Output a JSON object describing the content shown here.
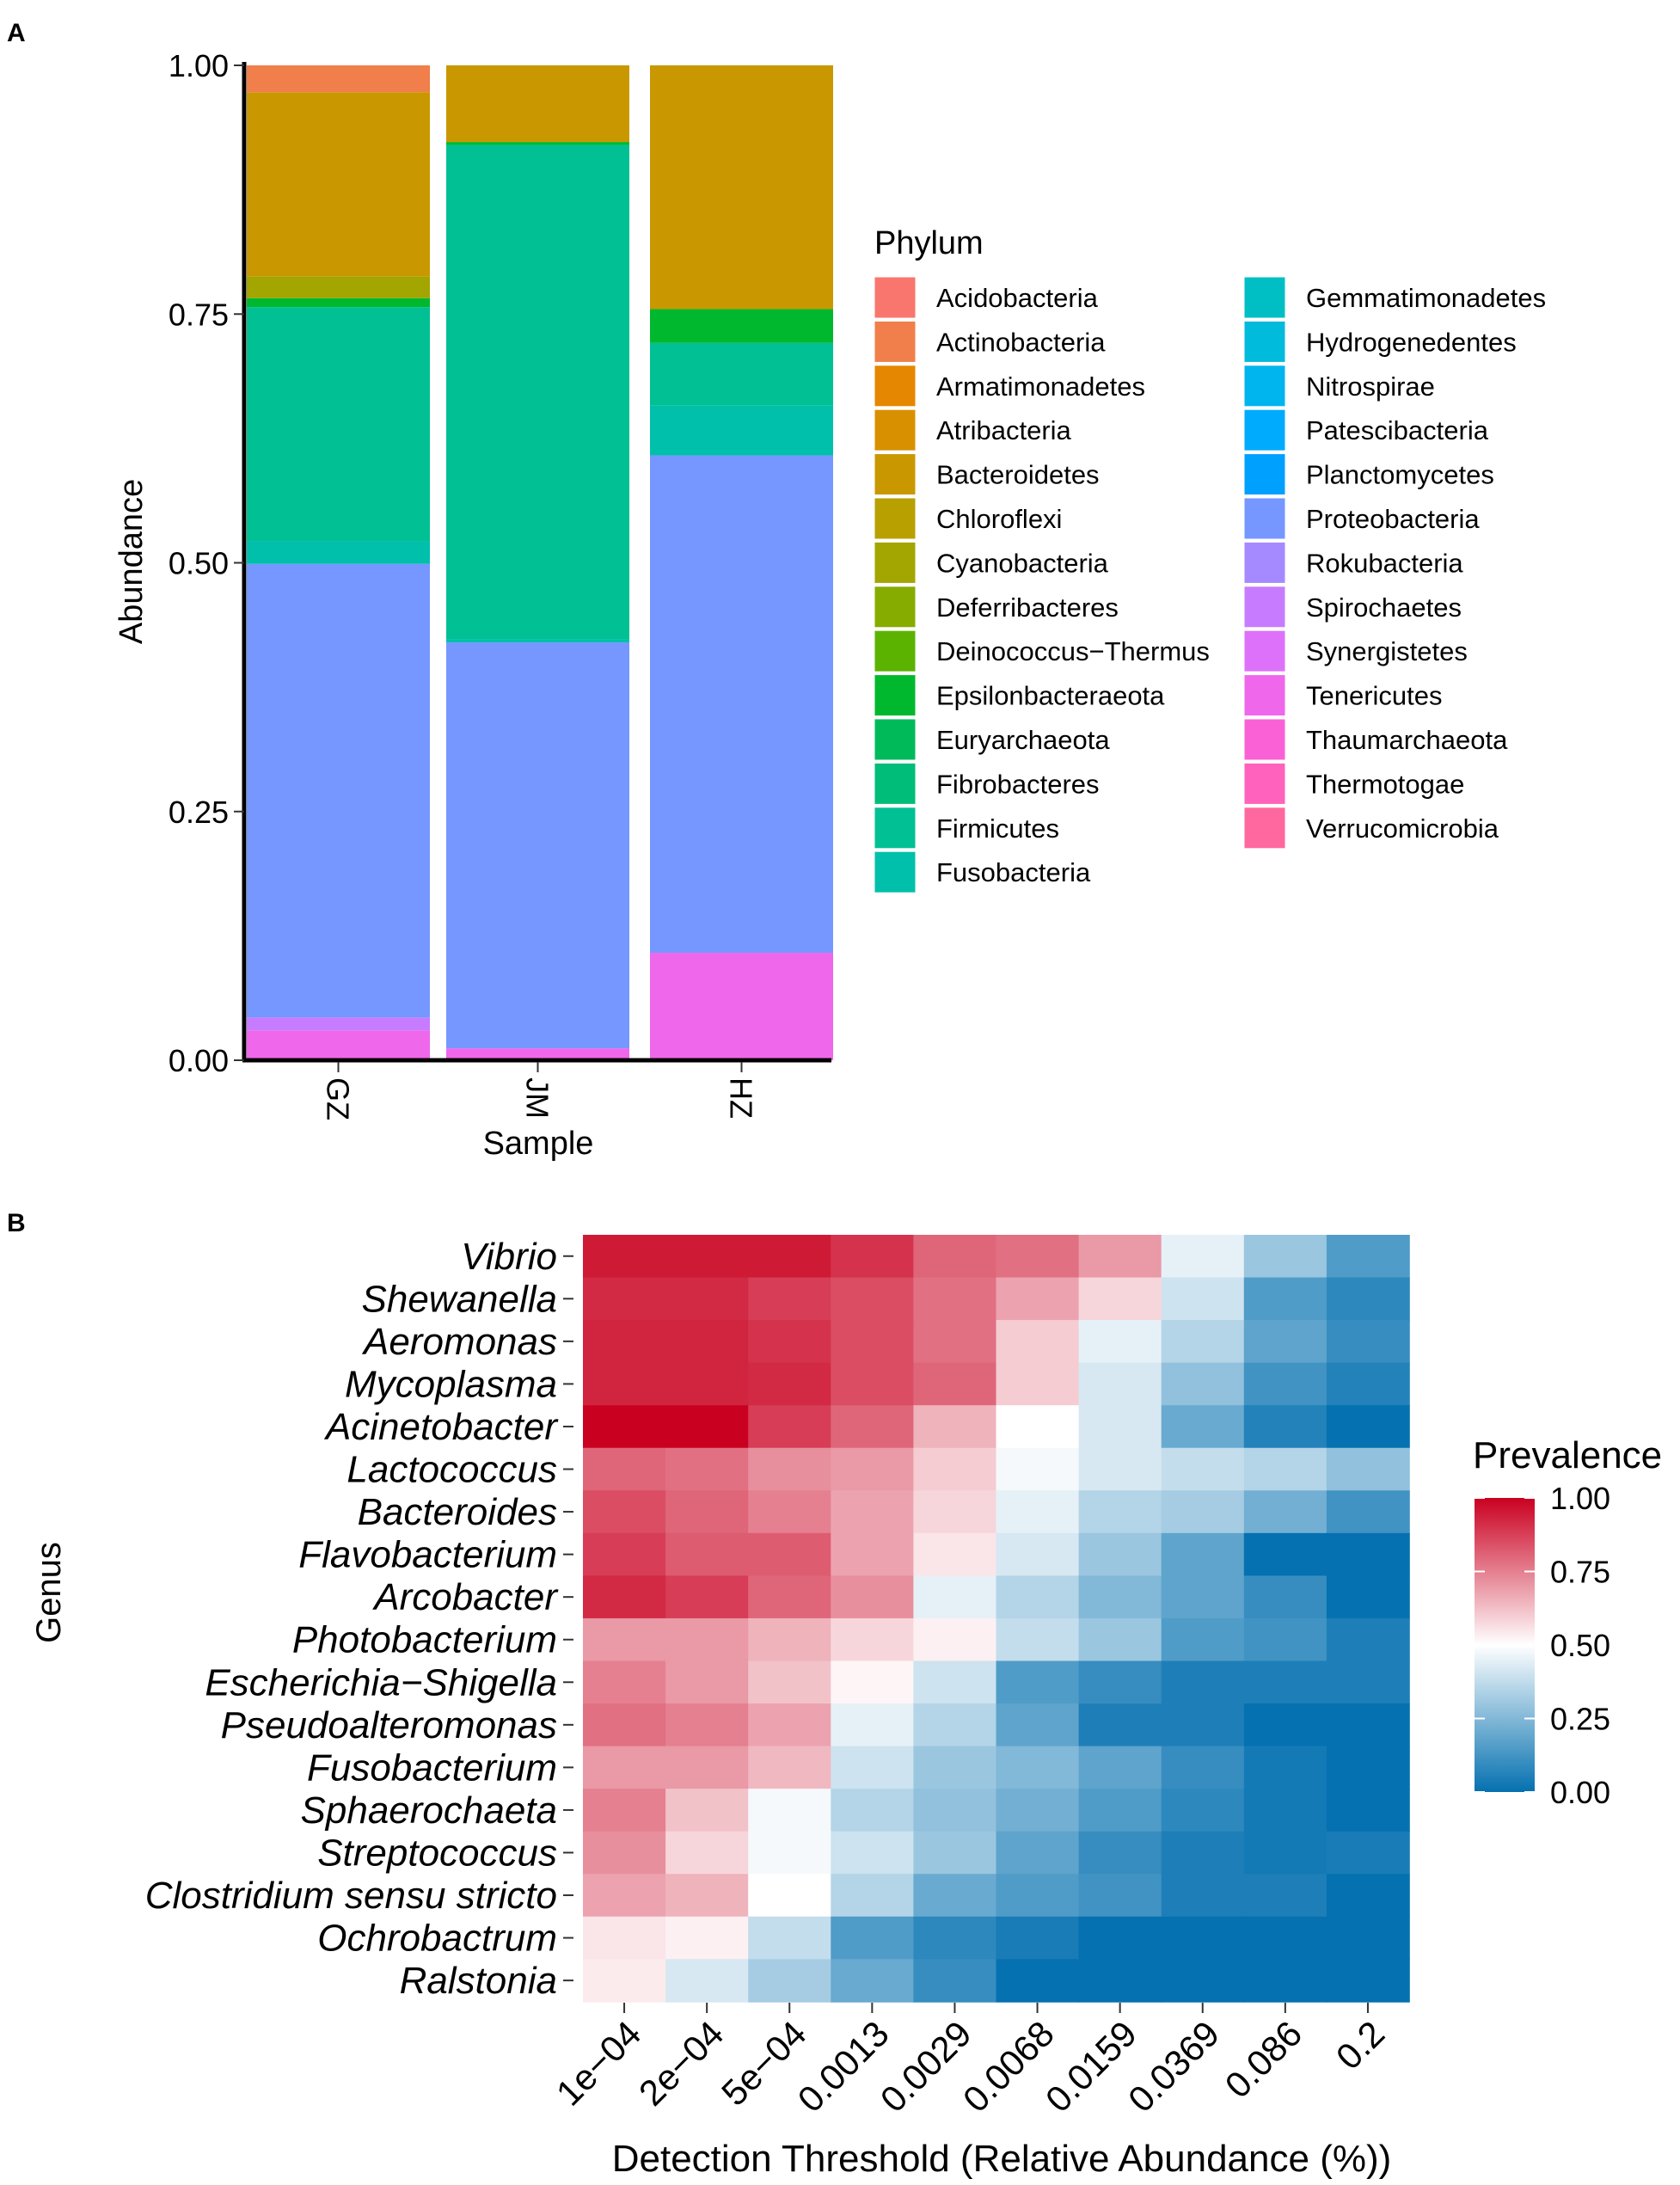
{
  "panels": {
    "a_label": "A",
    "b_label": "B"
  },
  "chart_data": [
    {
      "type": "bar",
      "stacked": true,
      "panel": "A",
      "xlabel": "Sample",
      "ylabel": "Abundance",
      "categories": [
        "GZ",
        "JM",
        "HZ"
      ],
      "ylim": [
        0,
        1
      ],
      "yticks": [
        "0.00",
        "0.25",
        "0.50",
        "0.75",
        "1.00"
      ],
      "legend_title": "Phylum",
      "phyla": [
        {
          "name": "Acidobacteria",
          "color": "#F8766D"
        },
        {
          "name": "Actinobacteria",
          "color": "#F07F4B"
        },
        {
          "name": "Armatimonadetes",
          "color": "#E58700"
        },
        {
          "name": "Atribacteria",
          "color": "#D89000"
        },
        {
          "name": "Bacteroidetes",
          "color": "#C99800"
        },
        {
          "name": "Chloroflexi",
          "color": "#B8A000"
        },
        {
          "name": "Cyanobacteria",
          "color": "#A3A500"
        },
        {
          "name": "Deferribacteres",
          "color": "#86AC00"
        },
        {
          "name": "Deinococcus−Thermus",
          "color": "#5BB300"
        },
        {
          "name": "Epsilonbacteraeota",
          "color": "#00B82E"
        },
        {
          "name": "Euryarchaeota",
          "color": "#00BA5A"
        },
        {
          "name": "Fibrobacteres",
          "color": "#00BD79"
        },
        {
          "name": "Firmicutes",
          "color": "#00C094"
        },
        {
          "name": "Fusobacteria",
          "color": "#00C0AB"
        },
        {
          "name": "Gemmatimonadetes",
          "color": "#00BFC4"
        },
        {
          "name": "Hydrogenedentes",
          "color": "#00BBDB"
        },
        {
          "name": "Nitrospirae",
          "color": "#00B5EE"
        },
        {
          "name": "Patescibacteria",
          "color": "#00ABFD"
        },
        {
          "name": "Planctomycetes",
          "color": "#00A0FF"
        },
        {
          "name": "Proteobacteria",
          "color": "#7597FF"
        },
        {
          "name": "Rokubacteria",
          "color": "#A58AFF"
        },
        {
          "name": "Spirochaetes",
          "color": "#C77CFF"
        },
        {
          "name": "Synergistetes",
          "color": "#DE71F9"
        },
        {
          "name": "Tenericutes",
          "color": "#EF67EB"
        },
        {
          "name": "Thaumarchaeota",
          "color": "#FB61D7"
        },
        {
          "name": "Thermotogae",
          "color": "#FF62BC"
        },
        {
          "name": "Verrucomicrobia",
          "color": "#FF689F"
        }
      ],
      "series": [
        {
          "name": "Tenericutes",
          "values": [
            0.03,
            0.012,
            0.108
          ]
        },
        {
          "name": "Spirochaetes",
          "values": [
            0.013,
            0.0,
            0.0
          ]
        },
        {
          "name": "Proteobacteria",
          "values": [
            0.456,
            0.408,
            0.5
          ]
        },
        {
          "name": "Fusobacteria",
          "values": [
            0.023,
            0.003,
            0.05
          ]
        },
        {
          "name": "Firmicutes",
          "values": [
            0.235,
            0.497,
            0.063
          ]
        },
        {
          "name": "Epsilonbacteraeota",
          "values": [
            0.009,
            0.003,
            0.034
          ]
        },
        {
          "name": "Cyanobacteria",
          "values": [
            0.022,
            0.0,
            0.0
          ]
        },
        {
          "name": "Bacteroidetes",
          "values": [
            0.185,
            0.077,
            0.245
          ]
        },
        {
          "name": "Actinobacteria",
          "values": [
            0.027,
            0.0,
            0.0
          ]
        }
      ]
    },
    {
      "type": "heatmap",
      "panel": "B",
      "xlabel": "Detection Threshold (Relative Abundance (%))",
      "ylabel": "Genus",
      "x": [
        "1e−04",
        "2e−04",
        "5e−04",
        "0.0013",
        "0.0029",
        "0.0068",
        "0.0159",
        "0.0369",
        "0.086",
        "0.2"
      ],
      "y": [
        "Vibrio",
        "Shewanella",
        "Aeromonas",
        "Mycoplasma",
        "Acinetobacter",
        "Lactococcus",
        "Bacteroides",
        "Flavobacterium",
        "Arcobacter",
        "Photobacterium",
        "Escherichia−Shigella",
        "Pseudoalteromonas",
        "Fusobacterium",
        "Sphaerochaeta",
        "Streptococcus",
        "Clostridium sensu stricto",
        "Ochrobactrum",
        "Ralstonia"
      ],
      "values": [
        [
          0.95,
          0.95,
          0.95,
          0.9,
          0.8,
          0.78,
          0.7,
          0.45,
          0.3,
          0.15
        ],
        [
          0.92,
          0.92,
          0.88,
          0.85,
          0.78,
          0.68,
          0.58,
          0.4,
          0.15,
          0.08
        ],
        [
          0.93,
          0.93,
          0.9,
          0.85,
          0.78,
          0.6,
          0.45,
          0.35,
          0.18,
          0.1
        ],
        [
          0.93,
          0.93,
          0.92,
          0.85,
          0.8,
          0.6,
          0.42,
          0.28,
          0.12,
          0.06
        ],
        [
          1.0,
          1.0,
          0.88,
          0.8,
          0.65,
          0.5,
          0.42,
          0.2,
          0.06,
          0.0
        ],
        [
          0.8,
          0.78,
          0.72,
          0.7,
          0.6,
          0.48,
          0.42,
          0.38,
          0.35,
          0.28
        ],
        [
          0.85,
          0.8,
          0.75,
          0.68,
          0.58,
          0.45,
          0.35,
          0.32,
          0.22,
          0.12
        ],
        [
          0.88,
          0.82,
          0.82,
          0.68,
          0.55,
          0.42,
          0.3,
          0.18,
          0.0,
          0.0
        ],
        [
          0.92,
          0.88,
          0.8,
          0.72,
          0.45,
          0.35,
          0.25,
          0.18,
          0.1,
          0.0
        ],
        [
          0.7,
          0.7,
          0.65,
          0.58,
          0.53,
          0.38,
          0.3,
          0.15,
          0.12,
          0.05
        ],
        [
          0.75,
          0.7,
          0.62,
          0.52,
          0.4,
          0.15,
          0.1,
          0.05,
          0.05,
          0.05
        ],
        [
          0.78,
          0.75,
          0.68,
          0.45,
          0.35,
          0.18,
          0.05,
          0.05,
          0.0,
          0.0
        ],
        [
          0.7,
          0.7,
          0.64,
          0.4,
          0.3,
          0.25,
          0.18,
          0.1,
          0.03,
          0.0
        ],
        [
          0.75,
          0.62,
          0.48,
          0.35,
          0.28,
          0.22,
          0.15,
          0.08,
          0.03,
          0.0
        ],
        [
          0.72,
          0.58,
          0.48,
          0.4,
          0.3,
          0.18,
          0.1,
          0.05,
          0.03,
          0.04
        ],
        [
          0.68,
          0.65,
          0.5,
          0.35,
          0.2,
          0.15,
          0.12,
          0.05,
          0.05,
          0.0
        ],
        [
          0.55,
          0.53,
          0.38,
          0.15,
          0.08,
          0.04,
          0.0,
          0.0,
          0.0,
          0.0
        ],
        [
          0.54,
          0.42,
          0.32,
          0.2,
          0.1,
          0.0,
          0.0,
          0.0,
          0.0,
          0.0
        ]
      ],
      "legend_title": "Prevalence",
      "scale_ticks": [
        "0.00",
        "0.25",
        "0.50",
        "0.75",
        "1.00"
      ],
      "colors": {
        "low": "#0571B0",
        "mid": "#FFFFFF",
        "high": "#CA0020"
      }
    }
  ]
}
